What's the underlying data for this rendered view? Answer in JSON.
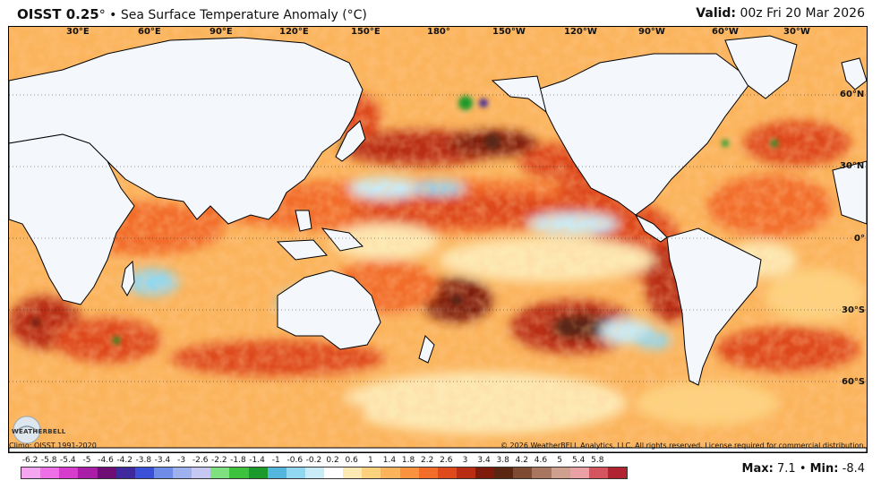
{
  "header": {
    "title_main": "OISST 0.25",
    "title_rest": "° • Sea Surface Temperature Anomaly (°C)",
    "valid_label": "Valid:",
    "valid_value": "00z Fri 20 Mar 2026"
  },
  "map": {
    "lon_labels": [
      "30°E",
      "60°E",
      "90°E",
      "120°E",
      "150°E",
      "180°",
      "150°W",
      "120°W",
      "90°W",
      "60°W",
      "30°W"
    ],
    "lat_labels": [
      "60°N",
      "30°N",
      "0°",
      "30°S",
      "60°S"
    ]
  },
  "footer": {
    "climo": "Climo: OISST 1991-2020",
    "copyright": "© 2026 WeatherBELL Analytics, LLC. All rights reserved. License required for commercial distribution.",
    "logo_text": "WEATHERBELL",
    "max_label": "Max:",
    "max_value": "7.1",
    "sep": "•",
    "min_label": "Min:",
    "min_value": "-8.4"
  },
  "colorbar": {
    "labels": [
      "-6.2",
      "-5.8",
      "-5.4",
      "-5",
      "-4.6",
      "-4.2",
      "-3.8",
      "-3.4",
      "-3",
      "-2.6",
      "-2.2",
      "-1.8",
      "-1.4",
      "-1",
      "-0.6",
      "-0.2",
      "0.2",
      "0.6",
      "1",
      "1.4",
      "1.8",
      "2.2",
      "2.6",
      "3",
      "3.4",
      "3.8",
      "4.2",
      "4.6",
      "5",
      "5.4",
      "5.8"
    ],
    "colors": [
      "#f6a5f0",
      "#ef6fe6",
      "#d63dcd",
      "#a81ea6",
      "#6e0d73",
      "#3e2a9c",
      "#3b50d8",
      "#6f8de8",
      "#9fb0ee",
      "#c4c8f2",
      "#7fe07f",
      "#3cc23c",
      "#1a9a2a",
      "#53b6dd",
      "#92d8f0",
      "#c9ecf8",
      "#ffffff",
      "#fde9b4",
      "#fdd27e",
      "#fbb45c",
      "#f99340",
      "#f26d2a",
      "#de4a1c",
      "#b92d14",
      "#7e1a0c",
      "#5a2612",
      "#7e4a32",
      "#a87560",
      "#cfa090",
      "#e9a1a6",
      "#d45560",
      "#b02331"
    ]
  }
}
